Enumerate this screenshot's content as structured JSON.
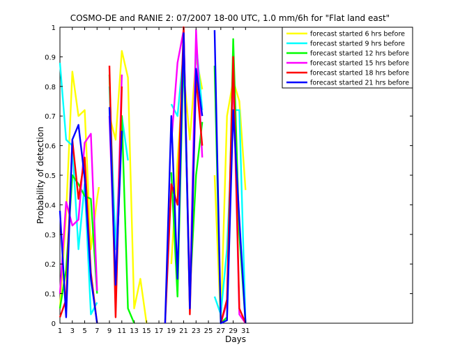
{
  "chart_data": {
    "type": "line",
    "title": "COSMO-DE and RANIE 2: 07/2007 18-00 UTC, 1.0 mm/6h for \"Flat land east\"",
    "xlabel": "Days",
    "ylabel": "Probability of detection",
    "xlim": [
      1,
      58
    ],
    "ylim": [
      0,
      1
    ],
    "xticks": [
      1,
      3,
      5,
      7,
      9,
      11,
      13,
      15,
      17,
      19,
      21,
      23,
      25,
      27,
      29,
      31
    ],
    "yticks": [
      0,
      0.1,
      0.2,
      0.3,
      0.4,
      0.5,
      0.6,
      0.7,
      0.8,
      0.9,
      1
    ],
    "ytick_labels": [
      "0",
      "0.1",
      "0.2",
      "0.3",
      "0.4",
      "0.5",
      "0.6",
      "0.7",
      "0.8",
      "0.9",
      "1"
    ],
    "legend_position": "top-right",
    "grid": false,
    "series": [
      {
        "name": "forecast started 6 hrs before",
        "color": "#ffff00",
        "x": [
          1,
          2,
          3,
          4,
          5,
          6,
          7,
          7.3,
          9,
          10,
          11,
          12,
          13,
          14,
          15,
          19,
          20,
          21,
          22,
          23,
          24,
          26,
          27,
          28,
          29,
          30,
          31
        ],
        "y": [
          0.05,
          0.37,
          0.85,
          0.7,
          0.72,
          0.25,
          0.42,
          0.46,
          0.7,
          0.62,
          0.92,
          0.83,
          0.05,
          0.15,
          0.0,
          0.2,
          0.55,
          0.85,
          0.62,
          0.9,
          0.79,
          0.5,
          0.0,
          0.7,
          0.82,
          0.75,
          0.45
        ]
      },
      {
        "name": "forecast started 9 hrs before",
        "color": "#00ffff",
        "x": [
          1,
          2,
          3,
          4,
          5,
          6,
          7,
          9,
          10,
          11,
          12,
          19,
          20,
          21,
          22,
          23,
          24,
          26,
          27,
          28,
          29,
          30,
          31
        ],
        "y": [
          0.88,
          0.62,
          0.6,
          0.25,
          0.47,
          0.03,
          0.07,
          0.8,
          0.25,
          0.7,
          0.55,
          0.74,
          0.7,
          0.92,
          0.05,
          0.95,
          0.72,
          0.09,
          0.03,
          0.25,
          0.72,
          0.72,
          0.0
        ]
      },
      {
        "name": "forecast started 12 hrs before",
        "color": "#00ff00",
        "x": [
          1,
          2,
          3,
          4,
          5,
          6,
          7,
          9,
          10,
          11,
          12,
          13,
          19,
          20,
          21,
          22,
          23,
          24,
          26,
          27,
          28,
          29,
          30,
          31
        ],
        "y": [
          0.05,
          0.18,
          0.5,
          0.47,
          0.43,
          0.42,
          0.1,
          0.84,
          0.09,
          0.7,
          0.05,
          0.0,
          0.51,
          0.09,
          0.93,
          0.1,
          0.5,
          0.68,
          0.87,
          0.0,
          0.02,
          0.96,
          0.3,
          0.0
        ]
      },
      {
        "name": "forecast started 15 hrs before",
        "color": "#ff00ff",
        "x": [
          1,
          2,
          3,
          4,
          5,
          6,
          7,
          9,
          10,
          11,
          19,
          20,
          21,
          22,
          23,
          24,
          27,
          28,
          29,
          30,
          31
        ],
        "y": [
          0.1,
          0.41,
          0.33,
          0.35,
          0.61,
          0.64,
          0.11,
          0.7,
          0.11,
          0.84,
          0.61,
          0.88,
          0.99,
          0.08,
          0.99,
          0.56,
          0.0,
          0.07,
          0.86,
          0.03,
          0.0
        ]
      },
      {
        "name": "forecast started 18 hrs before",
        "color": "#ff0000",
        "x": [
          1,
          2,
          3,
          4,
          5,
          6,
          7,
          9,
          10,
          11,
          18,
          19,
          20,
          21,
          22,
          23,
          24,
          27,
          28,
          29,
          30,
          31
        ],
        "y": [
          0.02,
          0.08,
          0.62,
          0.42,
          0.56,
          0.17,
          0.0,
          0.87,
          0.02,
          0.8,
          0.0,
          0.47,
          0.4,
          1.0,
          0.03,
          0.83,
          0.6,
          0.0,
          0.08,
          0.9,
          0.05,
          0.0
        ]
      },
      {
        "name": "forecast started 21 hrs before",
        "color": "#0000ff",
        "x": [
          1,
          2,
          3,
          4,
          5,
          6,
          7,
          9,
          10,
          11,
          18,
          19,
          20,
          21,
          22,
          23,
          24,
          26,
          27,
          28,
          29,
          30,
          31
        ],
        "y": [
          0.38,
          0.02,
          0.62,
          0.67,
          0.49,
          0.15,
          0.0,
          0.73,
          0.13,
          0.65,
          0.0,
          0.7,
          0.15,
          0.98,
          0.05,
          0.86,
          0.7,
          0.99,
          0.0,
          0.01,
          0.72,
          0.35,
          0.0
        ]
      }
    ]
  }
}
